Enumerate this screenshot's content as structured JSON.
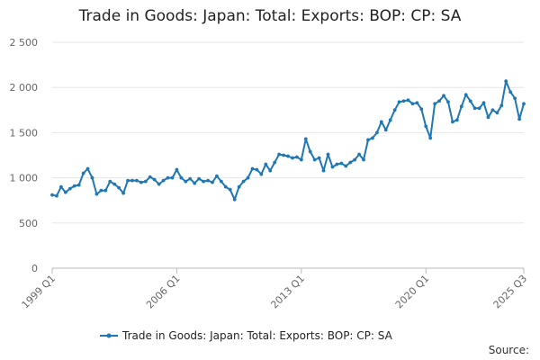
{
  "chart_data": {
    "type": "line",
    "title": "Trade in Goods: Japan: Total: Exports: BOP: CP: SA",
    "xlabel": "",
    "ylabel": "",
    "ylim": [
      0,
      2500
    ],
    "yticks": [
      0,
      500,
      1000,
      1500,
      2000,
      2500
    ],
    "ytick_labels": [
      "0",
      "500",
      "1 000",
      "1 500",
      "2 000",
      "2 500"
    ],
    "xtick_labels": [
      "1999 Q1",
      "2006 Q1",
      "2013 Q1",
      "2020 Q1",
      "2025 Q3"
    ],
    "grid": true,
    "legend_position": "bottom",
    "color": "#1f77b4",
    "series": [
      {
        "name": "Trade in Goods: Japan: Total: Exports: BOP: CP: SA",
        "x_start": "1999 Q1",
        "x_end": "2025 Q3",
        "values": [
          810,
          800,
          900,
          840,
          880,
          910,
          920,
          1050,
          1100,
          1000,
          820,
          860,
          860,
          960,
          930,
          890,
          830,
          970,
          970,
          970,
          950,
          960,
          1010,
          980,
          930,
          970,
          1000,
          1000,
          1090,
          1000,
          960,
          990,
          940,
          990,
          960,
          970,
          950,
          1020,
          960,
          900,
          870,
          760,
          900,
          960,
          1000,
          1100,
          1090,
          1040,
          1150,
          1080,
          1170,
          1260,
          1250,
          1240,
          1220,
          1230,
          1200,
          1430,
          1290,
          1200,
          1220,
          1080,
          1260,
          1120,
          1150,
          1160,
          1130,
          1170,
          1200,
          1260,
          1200,
          1420,
          1440,
          1500,
          1620,
          1530,
          1640,
          1750,
          1840,
          1850,
          1860,
          1820,
          1830,
          1760,
          1570,
          1440,
          1820,
          1850,
          1910,
          1840,
          1620,
          1640,
          1790,
          1920,
          1850,
          1770,
          1770,
          1830,
          1670,
          1750,
          1720,
          1800,
          2070,
          1950,
          1880,
          1650,
          1820
        ]
      }
    ]
  },
  "legend": {
    "label": "Trade in Goods: Japan: Total: Exports: BOP: CP: SA"
  },
  "source_label": "Source:"
}
